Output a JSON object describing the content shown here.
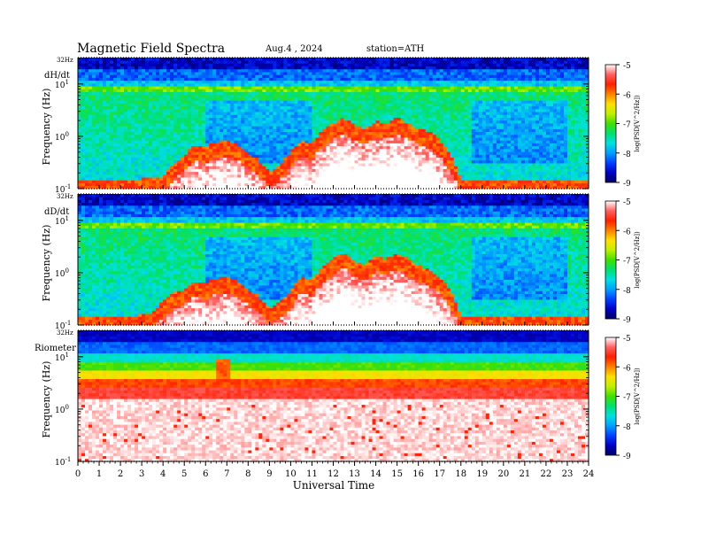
{
  "header": {
    "title": "Magnetic  Field  Spectra",
    "date": "Aug.4  , 2024",
    "station": "station=ATH"
  },
  "colors": {
    "colormap": [
      "#000060",
      "#0000c8",
      "#0040ff",
      "#00a0ff",
      "#00e0e0",
      "#00e070",
      "#40e000",
      "#c0f000",
      "#ffe000",
      "#ff8000",
      "#ff2000",
      "#ff6060",
      "#ffffff"
    ]
  },
  "chart_data": [
    {
      "type": "heatmap",
      "panel_label": "dH/dt",
      "ylabel": "Frequency  (Hz)",
      "y_scale": "log",
      "ylim": [
        0.1,
        32
      ],
      "yticks": [
        {
          "base": "10",
          "exp": "-1",
          "value": 0.1
        },
        {
          "base": "10",
          "exp": "0",
          "value": 1
        },
        {
          "base": "10",
          "exp": "1",
          "value": 10
        }
      ],
      "top_label": "32Hz",
      "xlim": [
        0,
        24
      ],
      "colorbar": {
        "label": "log(PSD[V^2/Hz])",
        "range": [
          -9,
          -5
        ],
        "ticks": [
          "-5",
          "-6",
          "-7",
          "-8",
          "-9"
        ]
      },
      "pc1_envelope": {
        "hours": [
          0,
          2,
          4,
          5,
          5.5,
          6,
          6.5,
          7,
          7.5,
          8,
          8.5,
          9,
          9.5,
          10,
          10.5,
          11,
          11.5,
          12,
          12.5,
          13,
          13.5,
          14,
          14.5,
          15,
          15.5,
          16,
          16.5,
          17,
          17.5,
          18,
          24
        ],
        "upper_freq_hz": [
          0.1,
          0.1,
          0.12,
          0.3,
          0.5,
          0.45,
          0.55,
          0.6,
          0.5,
          0.35,
          0.25,
          0.15,
          0.2,
          0.35,
          0.6,
          0.5,
          0.9,
          1.3,
          1.6,
          1.2,
          1.0,
          1.4,
          1.3,
          1.6,
          1.3,
          1.0,
          0.9,
          0.6,
          0.3,
          0.1,
          0.1
        ]
      }
    },
    {
      "type": "heatmap",
      "panel_label": "dD/dt",
      "ylabel": "Frequency  (Hz)",
      "y_scale": "log",
      "ylim": [
        0.1,
        32
      ],
      "yticks": [
        {
          "base": "10",
          "exp": "-1",
          "value": 0.1
        },
        {
          "base": "10",
          "exp": "0",
          "value": 1
        },
        {
          "base": "10",
          "exp": "1",
          "value": 10
        }
      ],
      "top_label": "32Hz",
      "xlim": [
        0,
        24
      ],
      "colorbar": {
        "label": "log(PSD[V^2/Hz])",
        "range": [
          -9,
          -5
        ],
        "ticks": [
          "-5",
          "-6",
          "-7",
          "-8",
          "-9"
        ]
      },
      "pc1_envelope": {
        "hours": [
          0,
          2,
          3.5,
          4,
          4.5,
          5,
          5.5,
          6,
          6.5,
          7,
          7.5,
          8,
          8.5,
          9,
          9.5,
          10,
          10.5,
          11,
          11.5,
          12,
          12.5,
          13,
          13.5,
          14,
          14.5,
          15,
          15.5,
          16,
          16.5,
          17,
          17.5,
          18,
          24
        ],
        "upper_freq_hz": [
          0.1,
          0.1,
          0.12,
          0.2,
          0.3,
          0.35,
          0.5,
          0.45,
          0.55,
          0.6,
          0.5,
          0.35,
          0.25,
          0.15,
          0.2,
          0.3,
          0.6,
          0.5,
          0.9,
          1.3,
          1.8,
          1.2,
          1.0,
          1.5,
          1.3,
          1.7,
          1.3,
          1.0,
          0.8,
          0.6,
          0.3,
          0.1,
          0.1
        ]
      }
    },
    {
      "type": "heatmap",
      "panel_label": "Riometer",
      "ylabel": "Frequency  (Hz)",
      "y_scale": "log",
      "ylim": [
        0.1,
        32
      ],
      "yticks": [
        {
          "base": "10",
          "exp": "-1",
          "value": 0.1
        },
        {
          "base": "10",
          "exp": "0",
          "value": 1
        },
        {
          "base": "10",
          "exp": "1",
          "value": 10
        }
      ],
      "top_label": "32Hz",
      "xlim": [
        0,
        24
      ],
      "xticks": [
        "0",
        "1",
        "2",
        "3",
        "4",
        "5",
        "6",
        "7",
        "8",
        "9",
        "10",
        "11",
        "12",
        "13",
        "14",
        "15",
        "16",
        "17",
        "18",
        "19",
        "20",
        "21",
        "22",
        "23",
        "24"
      ],
      "xlabel": "Universal  Time",
      "colorbar": {
        "label": "log(PSD[V^2/Hz])",
        "range": [
          -9,
          -5
        ],
        "ticks": [
          "-5",
          "-6",
          "-7",
          "-8",
          "-9"
        ]
      },
      "bands_hz": {
        "blue_top": [
          8,
          32
        ],
        "green": [
          4,
          8
        ],
        "yellow": [
          2.5,
          4
        ],
        "red": [
          1.2,
          2.5
        ],
        "white_below": 1.2
      },
      "burst": {
        "hour": 6.8,
        "freq_hz": [
          2,
          8
        ]
      }
    }
  ]
}
